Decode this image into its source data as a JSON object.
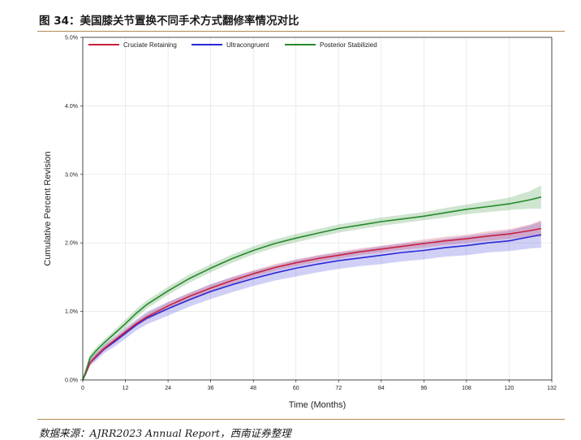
{
  "header": {
    "title": "图 34：美国膝关节置换不同手术方式翻修率情况对比"
  },
  "footer": {
    "source": "数据来源：AJRR2023 Annual Report，西南证券整理"
  },
  "colors": {
    "rule": "#b08b55",
    "cruciate": "#c8213f",
    "ultra": "#2b28d6",
    "posterior": "#258a2a",
    "grid": "#e3e3e3"
  },
  "chart_data": {
    "type": "line",
    "xlabel": "Time (Months)",
    "ylabel": "Cumulative Percent Revision",
    "xlim": [
      0,
      132
    ],
    "ylim": [
      0,
      5
    ],
    "x_ticks": [
      0,
      12,
      24,
      36,
      48,
      60,
      72,
      84,
      96,
      108,
      120,
      132
    ],
    "y_ticks": [
      0,
      1,
      2,
      3,
      4,
      5
    ],
    "y_tick_labels": [
      "0.0%",
      "1.0%",
      "2.0%",
      "3.0%",
      "4.0%",
      "5.0%"
    ],
    "grid": true,
    "legend_position": "top",
    "x": [
      0,
      1,
      2,
      4,
      6,
      9,
      12,
      15,
      18,
      24,
      30,
      36,
      42,
      48,
      54,
      60,
      66,
      72,
      78,
      84,
      90,
      96,
      102,
      108,
      114,
      120,
      126,
      129
    ],
    "series": [
      {
        "name": "Cruciate Retaining",
        "color": "#c8213f",
        "values": [
          0,
          0.12,
          0.25,
          0.36,
          0.46,
          0.58,
          0.7,
          0.82,
          0.92,
          1.08,
          1.22,
          1.34,
          1.45,
          1.55,
          1.64,
          1.71,
          1.77,
          1.82,
          1.87,
          1.91,
          1.95,
          1.99,
          2.03,
          2.06,
          2.1,
          2.13,
          2.18,
          2.21
        ],
        "band": [
          0.03,
          0.03,
          0.04,
          0.04,
          0.04,
          0.04,
          0.04,
          0.04,
          0.05,
          0.05,
          0.05,
          0.05,
          0.05,
          0.05,
          0.05,
          0.05,
          0.05,
          0.05,
          0.05,
          0.05,
          0.05,
          0.06,
          0.06,
          0.06,
          0.07,
          0.07,
          0.09,
          0.12
        ]
      },
      {
        "name": "Ultracongruent",
        "color": "#2b28d6",
        "values": [
          0,
          0.12,
          0.25,
          0.35,
          0.45,
          0.56,
          0.68,
          0.8,
          0.9,
          1.04,
          1.17,
          1.29,
          1.39,
          1.48,
          1.56,
          1.63,
          1.69,
          1.74,
          1.78,
          1.82,
          1.86,
          1.89,
          1.93,
          1.96,
          2.0,
          2.03,
          2.09,
          2.12
        ],
        "band": [
          0.04,
          0.04,
          0.05,
          0.06,
          0.06,
          0.07,
          0.08,
          0.08,
          0.09,
          0.1,
          0.1,
          0.11,
          0.11,
          0.11,
          0.11,
          0.12,
          0.12,
          0.12,
          0.12,
          0.13,
          0.13,
          0.13,
          0.13,
          0.14,
          0.14,
          0.15,
          0.17,
          0.19
        ]
      },
      {
        "name": "Posterior Stabilizied",
        "color": "#258a2a",
        "values": [
          0,
          0.15,
          0.32,
          0.44,
          0.54,
          0.68,
          0.82,
          0.97,
          1.1,
          1.3,
          1.48,
          1.63,
          1.77,
          1.89,
          1.99,
          2.07,
          2.14,
          2.21,
          2.26,
          2.31,
          2.35,
          2.39,
          2.44,
          2.49,
          2.53,
          2.57,
          2.63,
          2.67
        ],
        "band": [
          0.03,
          0.04,
          0.05,
          0.05,
          0.05,
          0.05,
          0.06,
          0.06,
          0.06,
          0.06,
          0.06,
          0.06,
          0.06,
          0.06,
          0.06,
          0.06,
          0.06,
          0.06,
          0.06,
          0.06,
          0.06,
          0.06,
          0.07,
          0.07,
          0.08,
          0.09,
          0.13,
          0.17
        ]
      }
    ]
  }
}
